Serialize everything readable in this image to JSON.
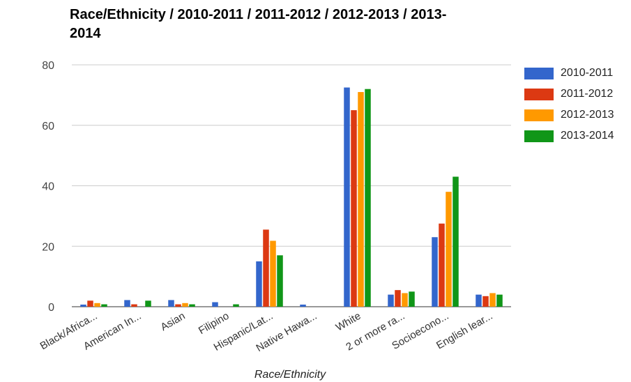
{
  "chart_data": {
    "type": "bar",
    "title": "Race/Ethnicity / 2010-2011 / 2011-2012 / 2012-2013 / 2013-2014",
    "xlabel": "Race/Ethnicity",
    "ylabel": "",
    "ylim": [
      0,
      80
    ],
    "yticks": [
      "0",
      "20",
      "40",
      "60",
      "80"
    ],
    "grid": true,
    "legend_position": "right",
    "categories": [
      "Black/Africa...",
      "American In...",
      "Asian",
      "Filipino",
      "Hispanic/Lat...",
      "Native Hawa...",
      "White",
      "2 or more ra...",
      "Socioecono...",
      "English lear..."
    ],
    "series": [
      {
        "name": "2010-2011",
        "color": "#3366cc",
        "values": [
          0.7,
          2.2,
          2.2,
          1.5,
          15.0,
          0.7,
          72.5,
          4.0,
          23.0,
          4.0
        ]
      },
      {
        "name": "2011-2012",
        "color": "#dc3912",
        "values": [
          2.0,
          0.8,
          0.8,
          0,
          25.5,
          0,
          65.0,
          5.5,
          27.5,
          3.5
        ]
      },
      {
        "name": "2012-2013",
        "color": "#ff9900",
        "values": [
          1.2,
          0,
          1.2,
          0,
          21.8,
          0,
          71.0,
          4.5,
          38.0,
          4.5
        ]
      },
      {
        "name": "2013-2014",
        "color": "#109618",
        "values": [
          0.8,
          2.0,
          0.8,
          0.8,
          17.0,
          0,
          72.0,
          5.0,
          43.0,
          4.0
        ]
      }
    ]
  }
}
